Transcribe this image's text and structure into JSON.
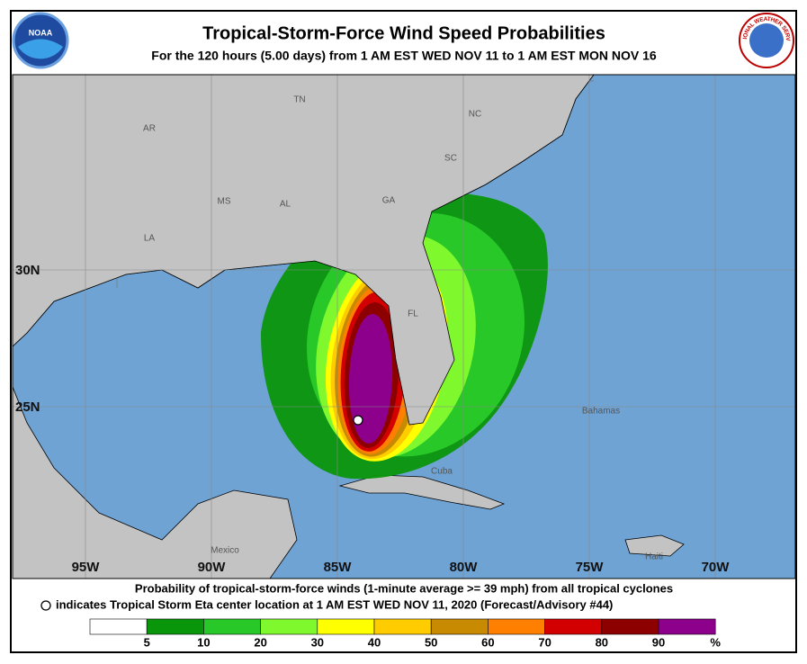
{
  "header": {
    "title": "Tropical-Storm-Force Wind Speed Probabilities",
    "subtitle": "For the 120 hours (5.00 days) from 1 AM EST WED NOV 11 to 1 AM EST MON NOV 16",
    "left_logo": "NOAA",
    "right_logo": "NATIONAL WEATHER SERVICE"
  },
  "map": {
    "place_labels": [
      "TN",
      "NC",
      "AR",
      "SC",
      "MS",
      "AL",
      "GA",
      "LA",
      "FL",
      "Bahamas",
      "Cuba",
      "Mexico",
      "Haiti"
    ],
    "lat_labels": [
      "30N",
      "25N"
    ],
    "lon_labels": [
      "95W",
      "90W",
      "85W",
      "80W",
      "75W",
      "70W"
    ]
  },
  "footer": {
    "line1": "Probability of tropical-storm-force winds (1-minute average >= 39 mph) from all tropical cyclones",
    "line2": "indicates Tropical Storm Eta center location at 1 AM EST WED NOV 11, 2020 (Forecast/Advisory #44)"
  },
  "legend": {
    "colors": [
      "#ffffff",
      "#0a960a",
      "#28c828",
      "#80f82e",
      "#ffff00",
      "#ffcc00",
      "#c88a00",
      "#ff8000",
      "#d20000",
      "#8c0000",
      "#8c008c"
    ],
    "ticks": [
      5,
      10,
      20,
      30,
      40,
      50,
      60,
      70,
      80,
      90
    ],
    "unit": "%"
  }
}
